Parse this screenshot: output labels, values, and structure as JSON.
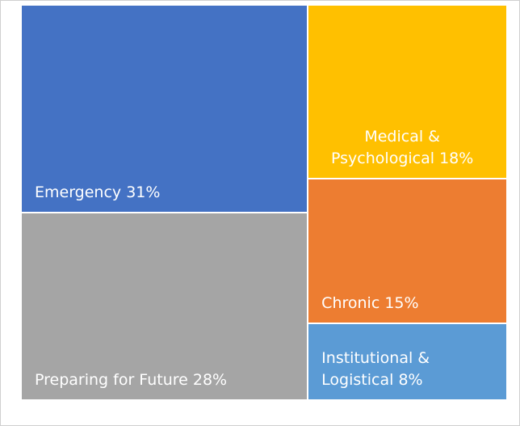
{
  "chart_data": {
    "type": "treemap",
    "categories": [
      "Emergency",
      "Preparing for Future",
      "Medical & Psychological",
      "Chronic",
      "Institutional & Logistical"
    ],
    "values": [
      31,
      28,
      18,
      15,
      8
    ],
    "value_labels": [
      "31%",
      "28%",
      "18%",
      "15%",
      "8%"
    ],
    "colors": [
      "#4472c4",
      "#a5a5a5",
      "#ffc000",
      "#ed7d31",
      "#5b9bd5"
    ]
  }
}
